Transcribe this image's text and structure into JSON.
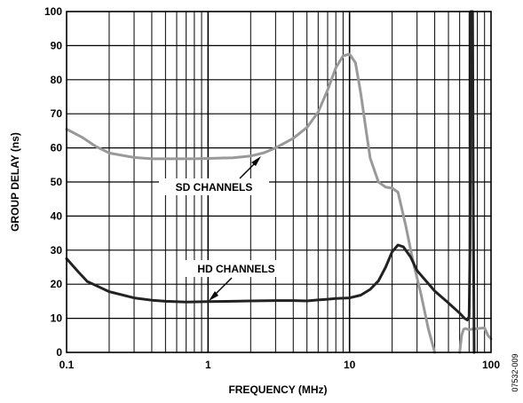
{
  "chart_data": {
    "type": "line",
    "xlabel": "FREQUENCY (MHz)",
    "ylabel": "GROUP DELAY (ns)",
    "xscale": "log",
    "xlim": [
      0.1,
      100
    ],
    "ylim": [
      0,
      100
    ],
    "x_ticks": [
      "0.1",
      "1",
      "10",
      "100"
    ],
    "y_ticks": [
      "0",
      "10",
      "20",
      "30",
      "40",
      "50",
      "60",
      "70",
      "80",
      "90",
      "100"
    ],
    "grid": true,
    "figure_id": "07532-009",
    "annotations": [
      {
        "label": "SD CHANNELS",
        "points_to": [
          2.8,
          60
        ]
      },
      {
        "label": "HD CHANNELS",
        "points_to": [
          0.85,
          15
        ]
      }
    ],
    "series": [
      {
        "name": "SD CHANNELS",
        "color": "#999999",
        "points": [
          [
            0.1,
            65.5
          ],
          [
            0.13,
            63
          ],
          [
            0.16,
            60.5
          ],
          [
            0.2,
            58.5
          ],
          [
            0.3,
            57.2
          ],
          [
            0.4,
            56.8
          ],
          [
            0.6,
            56.8
          ],
          [
            0.8,
            56.8
          ],
          [
            1.0,
            56.9
          ],
          [
            1.5,
            57.1
          ],
          [
            2.0,
            57.6
          ],
          [
            2.5,
            58.6
          ],
          [
            3.0,
            60.0
          ],
          [
            4.0,
            62.8
          ],
          [
            5.0,
            66.0
          ],
          [
            6.0,
            70.5
          ],
          [
            7.0,
            77.0
          ],
          [
            8.0,
            83.5
          ],
          [
            9.0,
            87.0
          ],
          [
            10.0,
            87.5
          ],
          [
            11.0,
            85.0
          ],
          [
            12.0,
            76.0
          ],
          [
            13.0,
            66.0
          ],
          [
            14.0,
            57.0
          ],
          [
            16.0,
            50.0
          ],
          [
            18.0,
            48.5
          ],
          [
            20.0,
            48.2
          ],
          [
            22.0,
            47.0
          ],
          [
            25.0,
            37.0
          ],
          [
            28.0,
            27.0
          ],
          [
            32.0,
            17.0
          ],
          [
            36.0,
            7.0
          ],
          [
            40.0,
            0.0
          ]
        ],
        "points_segment_2": [
          [
            60.0,
            0.0
          ],
          [
            62.0,
            5.0
          ],
          [
            64.0,
            6.8
          ],
          [
            66.0,
            7.0
          ],
          [
            68.0,
            6.8
          ],
          [
            70.0,
            6.7
          ],
          [
            80.0,
            7.0
          ],
          [
            90.0,
            7.2
          ],
          [
            95.0,
            5.0
          ],
          [
            100.0,
            4.0
          ]
        ]
      },
      {
        "name": "HD CHANNELS",
        "color": "#222222",
        "points": [
          [
            0.1,
            27.5
          ],
          [
            0.12,
            23.8
          ],
          [
            0.14,
            20.8
          ],
          [
            0.17,
            19.2
          ],
          [
            0.2,
            17.8
          ],
          [
            0.3,
            16.0
          ],
          [
            0.4,
            15.3
          ],
          [
            0.5,
            15.0
          ],
          [
            0.7,
            14.8
          ],
          [
            1.0,
            14.9
          ],
          [
            1.5,
            15.0
          ],
          [
            2.0,
            15.1
          ],
          [
            3.0,
            15.2
          ],
          [
            4.0,
            15.2
          ],
          [
            5.0,
            15.1
          ],
          [
            6.0,
            15.4
          ],
          [
            7.0,
            15.6
          ],
          [
            8.0,
            15.8
          ],
          [
            10.0,
            16.0
          ],
          [
            12.0,
            16.8
          ],
          [
            14.0,
            18.5
          ],
          [
            16.0,
            21.0
          ],
          [
            18.0,
            25.0
          ],
          [
            20.0,
            29.5
          ],
          [
            22.0,
            31.5
          ],
          [
            24.0,
            31.0
          ],
          [
            27.0,
            28.0
          ],
          [
            30.0,
            24.0
          ],
          [
            40.0,
            18.0
          ],
          [
            50.0,
            14.5
          ],
          [
            60.0,
            11.5
          ],
          [
            65.0,
            10.0
          ],
          [
            68.0,
            9.5
          ],
          [
            70.0,
            10.5
          ],
          [
            71.0,
            30.0
          ],
          [
            72.0,
            100.0
          ]
        ],
        "points_segment_2": [
          [
            74.0,
            100.0
          ],
          [
            75.0,
            40.0
          ],
          [
            76.0,
            0.0
          ]
        ]
      }
    ]
  }
}
